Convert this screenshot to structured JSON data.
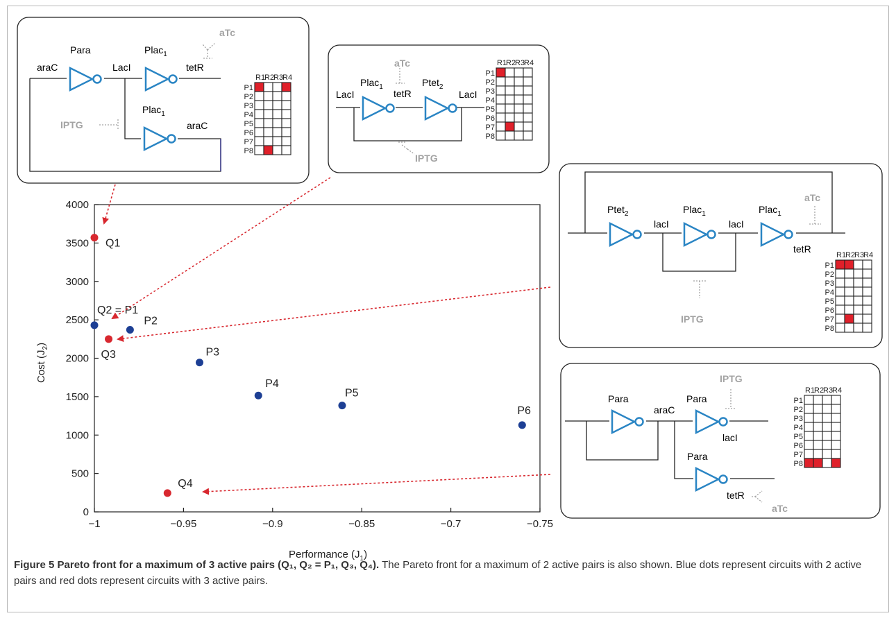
{
  "chart_data": {
    "type": "scatter",
    "xlabel": "Performance (J",
    "xlabel_sub": "1",
    "ylabel": "Cost (J",
    "ylabel_sub": "2",
    "xlim": [
      -1,
      -0.75
    ],
    "ylim": [
      0,
      4000
    ],
    "xtick_labels": [
      "−1",
      "−0.95",
      "−0.9",
      "−0.85",
      "−0.7",
      "−0.75"
    ],
    "ytick_labels": [
      "0",
      "500",
      "1000",
      "1500",
      "2000",
      "2500",
      "3000",
      "3500",
      "4000"
    ],
    "series": [
      {
        "points": [
          {
            "label": "Q2 = P1",
            "x": -1.0,
            "y": 2430
          },
          {
            "label": "P2",
            "x": -0.98,
            "y": 2370
          },
          {
            "label": "P3",
            "x": -0.941,
            "y": 1945
          },
          {
            "label": "P4",
            "x": -0.908,
            "y": 1515
          },
          {
            "label": "P5",
            "x": -0.861,
            "y": 1385
          },
          {
            "label": "P6",
            "x": -0.76,
            "y": 1130
          }
        ]
      },
      {
        "points": [
          {
            "label": "Q1",
            "x": -1.0,
            "y": 3570
          },
          {
            "label": "Q3",
            "x": -0.992,
            "y": 2250
          },
          {
            "label": "Q4",
            "x": -0.959,
            "y": 245
          }
        ]
      }
    ]
  },
  "colors": {
    "blue_dots": "#1d3f94",
    "red_dots": "#d8282f",
    "gate_blue": "#2a85c4",
    "grey_inducer": "#a3a3a3",
    "matrix_red": "#e0202a"
  },
  "matrix_labels": {
    "cols": [
      "R1",
      "R2",
      "R3",
      "R4"
    ],
    "rows": [
      "P1",
      "P2",
      "P3",
      "P4",
      "P5",
      "P6",
      "P7",
      "P8"
    ]
  },
  "circuits": {
    "q1": {
      "gates": [
        {
          "promoter": "Para",
          "in": "araC",
          "out": "LacI"
        },
        {
          "promoter": "Plac",
          "sub": "1",
          "out": "tetR"
        },
        {
          "promoter": "Plac",
          "sub": "1",
          "out": "araC"
        }
      ],
      "inducers": [
        "aTc",
        "IPTG"
      ],
      "red_cells": [
        [
          0,
          0
        ],
        [
          0,
          3
        ],
        [
          7,
          1
        ]
      ]
    },
    "q2": {
      "gates": [
        {
          "promoter": "Plac",
          "sub": "1",
          "in": "LacI",
          "out": "tetR"
        },
        {
          "promoter": "Ptet",
          "sub": "2",
          "out": "LacI"
        }
      ],
      "inducers": [
        "aTc",
        "IPTG"
      ],
      "red_cells": [
        [
          0,
          0
        ],
        [
          6,
          1
        ]
      ]
    },
    "q3": {
      "gates": [
        {
          "promoter": "Ptet",
          "sub": "2",
          "out": "lacI"
        },
        {
          "promoter": "Plac",
          "sub": "1",
          "out": "lacI"
        },
        {
          "promoter": "Plac",
          "sub": "1",
          "out": "tetR"
        }
      ],
      "inducers": [
        "aTc",
        "IPTG"
      ],
      "red_cells": [
        [
          0,
          0
        ],
        [
          0,
          1
        ],
        [
          6,
          1
        ]
      ]
    },
    "q4": {
      "gates": [
        {
          "promoter": "Para",
          "out": "araC"
        },
        {
          "promoter": "Para",
          "out": "lacI"
        },
        {
          "promoter": "Para",
          "out": "tetR"
        }
      ],
      "inducers": [
        "IPTG",
        "aTc"
      ],
      "red_cells": [
        [
          7,
          0
        ],
        [
          7,
          1
        ],
        [
          7,
          3
        ]
      ]
    }
  },
  "caption": {
    "label": "Figure 5 Pareto front for a maximum of 3 active pairs (Q₁, Q₂ = P₁, Q₃, Q₄).",
    "text": " The Pareto front for a maximum of 2 active pairs is also shown. Blue dots represent circuits with 2 active pairs and red dots represent circuits with 3 active pairs."
  }
}
